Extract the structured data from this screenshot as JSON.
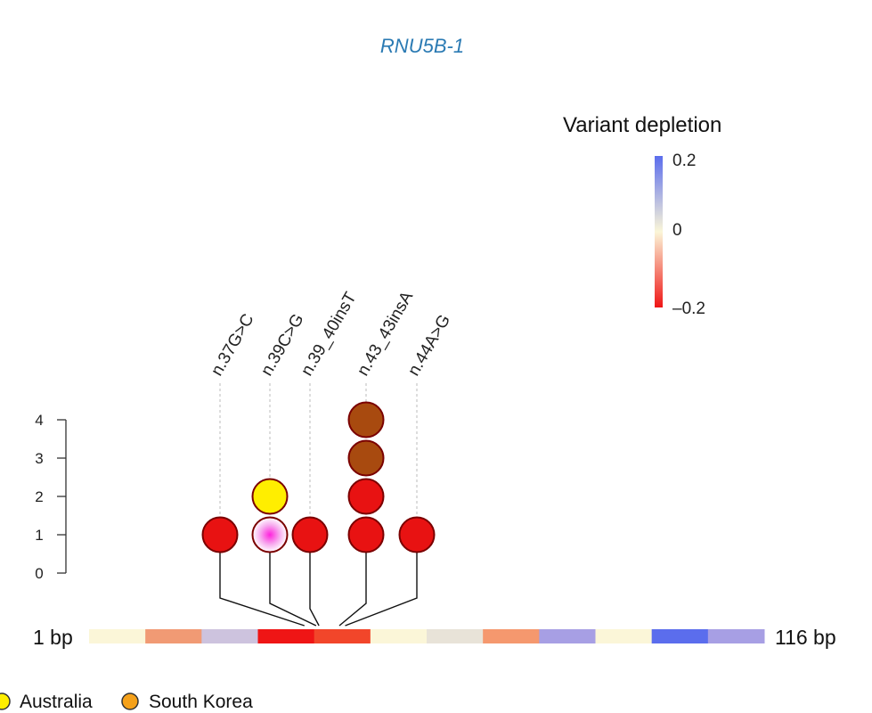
{
  "chart_data": {
    "type": "lollipop",
    "title": "RNU5B-1",
    "y_ticks": [
      "0",
      "1",
      "2",
      "3",
      "4"
    ],
    "ylim": [
      0,
      4
    ],
    "gene_start_label": "1 bp",
    "gene_end_label": "116 bp",
    "gene_length_bp": 116,
    "variants": [
      {
        "label": "n.37G>C",
        "position": 37,
        "samples": [
          {
            "color": "#e81212",
            "border": "#7a0000"
          }
        ]
      },
      {
        "label": "n.39C>G",
        "position": 39,
        "samples": [
          {
            "color": "#ff33dd",
            "border": "#7a0000",
            "radial": true
          },
          {
            "color": "#ffee00",
            "border": "#7a0000"
          }
        ]
      },
      {
        "label": "n.39_40insT",
        "position": 39.5,
        "samples": [
          {
            "color": "#e81212",
            "border": "#7a0000"
          }
        ]
      },
      {
        "label": "n.43_43insA",
        "position": 43,
        "samples": [
          {
            "color": "#e81212",
            "border": "#7a0000"
          },
          {
            "color": "#e81212",
            "border": "#7a0000"
          },
          {
            "color": "#a84a0f",
            "border": "#7a0000"
          },
          {
            "color": "#a84a0f",
            "border": "#7a0000"
          }
        ]
      },
      {
        "label": "n.44A>G",
        "position": 44,
        "samples": [
          {
            "color": "#e81212",
            "border": "#7a0000"
          }
        ]
      }
    ],
    "gene_segments": [
      {
        "depletion": 0.0,
        "color": "#fbf6d8"
      },
      {
        "depletion": -0.1,
        "color": "#f19a74"
      },
      {
        "depletion": 0.05,
        "color": "#cdc3de"
      },
      {
        "depletion": -0.2,
        "color": "#ef1515"
      },
      {
        "depletion": -0.18,
        "color": "#f2462a"
      },
      {
        "depletion": 0.0,
        "color": "#fbf6d8"
      },
      {
        "depletion": 0.02,
        "color": "#e8e3d8"
      },
      {
        "depletion": -0.1,
        "color": "#f5986e"
      },
      {
        "depletion": 0.12,
        "color": "#a79fe4"
      },
      {
        "depletion": 0.0,
        "color": "#fbf6d8"
      },
      {
        "depletion": 0.2,
        "color": "#5b6ded"
      },
      {
        "depletion": 0.12,
        "color": "#a79fe4"
      }
    ],
    "colorbar": {
      "title": "Variant depletion",
      "labels": [
        "0.2",
        "0",
        "–0.2"
      ],
      "range": [
        -0.2,
        0.2
      ],
      "colors": [
        "#5b6ded",
        "#fbf6d8",
        "#ef1515"
      ]
    },
    "country_legend": [
      {
        "label": "Australia",
        "color": "#ffee00"
      },
      {
        "label": "South Korea",
        "color": "#f5a11a"
      }
    ]
  }
}
